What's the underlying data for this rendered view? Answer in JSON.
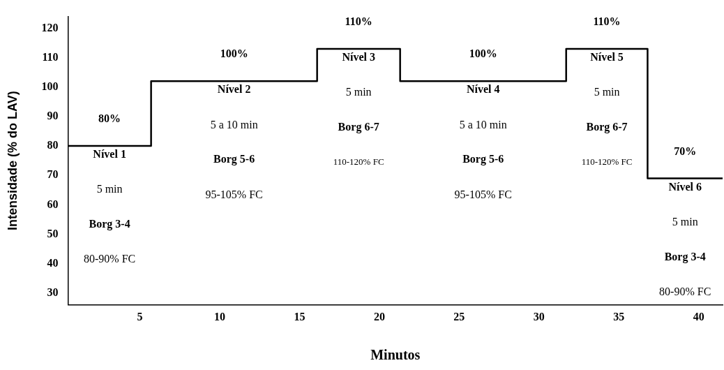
{
  "chart_data": {
    "type": "step",
    "xlabel": "Minutos",
    "ylabel": "Intensidade (% do LAV)",
    "x": [
      0.5,
      5.7,
      16.1,
      21.3,
      31.7,
      36.8,
      41.5
    ],
    "values": [
      80,
      102,
      113,
      102,
      113,
      69,
      69
    ],
    "color": "#000000",
    "xlim": [
      0.5,
      41.5
    ],
    "xticks": [
      5,
      10,
      15,
      20,
      25,
      30,
      35,
      40
    ],
    "ylim": [
      26,
      124
    ],
    "yticks": [
      30,
      40,
      50,
      60,
      70,
      80,
      90,
      100,
      110,
      120
    ],
    "grid": false,
    "legend": false,
    "marker": "none",
    "annotations": [
      "80%",
      "Nível 1",
      "5 min",
      "Borg 3-4",
      "80-90% FC",
      "100%",
      "Nível 2",
      "5 a 10 min",
      "Borg 5-6",
      "95-105% FC",
      "110%",
      "Nível 3",
      "5 min",
      "Borg 6-7",
      "110-120% FC",
      "100%",
      "Nível 4",
      "5 a 10 min",
      "Borg 5-6",
      "95-105% FC",
      "110%",
      "Nível 5",
      "5 min",
      "Borg 6-7",
      "110-120% FC",
      "70%",
      "Nível 6",
      "5 min",
      "Borg 3-4",
      "80-90% FC"
    ]
  }
}
